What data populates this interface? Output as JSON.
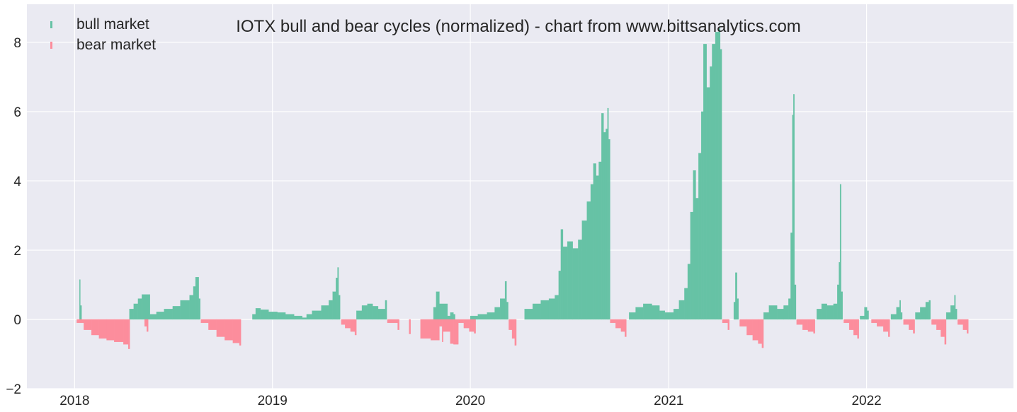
{
  "chart_data": {
    "type": "bar",
    "title": "IOTX bull and bear cycles (normalized)  - chart from www.bittsanalytics.com",
    "xlabel": "",
    "ylabel": "",
    "ylim": [
      -2,
      9.1
    ],
    "xlim": [
      "2017-10-05",
      "2022-09-29"
    ],
    "grid": true,
    "legend_position": "top-left",
    "y_ticks": [
      -2,
      0,
      2,
      4,
      6,
      8
    ],
    "y_tick_labels": [
      "−2",
      "0",
      "2",
      "4",
      "6",
      "8"
    ],
    "x_ticks": [
      "2018-01-01",
      "2019-01-01",
      "2020-01-01",
      "2021-01-01",
      "2022-01-01"
    ],
    "x_tick_labels": [
      "2018",
      "2019",
      "2020",
      "2021",
      "2022"
    ],
    "colors": {
      "bull": "#66c2a5",
      "bear": "#fc8d9c",
      "background": "#eaeaf2",
      "grid": "#ffffff"
    },
    "series": [
      {
        "name": "bull market",
        "points": [
          [
            "2018-01-10",
            1.15
          ],
          [
            "2018-01-11",
            0.4
          ],
          [
            "2018-04-12",
            0.3
          ],
          [
            "2018-04-20",
            0.45
          ],
          [
            "2018-04-28",
            0.6
          ],
          [
            "2018-05-05",
            0.72
          ],
          [
            "2018-05-20",
            0.15
          ],
          [
            "2018-06-01",
            0.22
          ],
          [
            "2018-06-15",
            0.3
          ],
          [
            "2018-07-01",
            0.38
          ],
          [
            "2018-07-15",
            0.55
          ],
          [
            "2018-08-01",
            0.7
          ],
          [
            "2018-08-08",
            0.95
          ],
          [
            "2018-08-12",
            1.22
          ],
          [
            "2018-08-18",
            0.6
          ],
          [
            "2018-11-25",
            0.15
          ],
          [
            "2018-12-01",
            0.32
          ],
          [
            "2018-12-10",
            0.28
          ],
          [
            "2018-12-25",
            0.22
          ],
          [
            "2019-01-10",
            0.2
          ],
          [
            "2019-01-25",
            0.15
          ],
          [
            "2019-02-10",
            0.1
          ],
          [
            "2019-02-25",
            0.05
          ],
          [
            "2019-03-05",
            0.15
          ],
          [
            "2019-03-15",
            0.25
          ],
          [
            "2019-04-01",
            0.4
          ],
          [
            "2019-04-15",
            0.55
          ],
          [
            "2019-04-22",
            0.8
          ],
          [
            "2019-04-28",
            1.2
          ],
          [
            "2019-05-01",
            1.5
          ],
          [
            "2019-05-03",
            0.7
          ],
          [
            "2019-06-05",
            0.25
          ],
          [
            "2019-06-15",
            0.4
          ],
          [
            "2019-06-25",
            0.45
          ],
          [
            "2019-07-05",
            0.38
          ],
          [
            "2019-07-15",
            0.3
          ],
          [
            "2019-07-28",
            0.55
          ],
          [
            "2019-10-25",
            0.35
          ],
          [
            "2019-10-30",
            0.8
          ],
          [
            "2019-11-05",
            0.45
          ],
          [
            "2019-11-20",
            0.1
          ],
          [
            "2019-11-25",
            0.2
          ],
          [
            "2019-12-01",
            0.15
          ],
          [
            "2020-01-01",
            0.1
          ],
          [
            "2020-01-15",
            0.15
          ],
          [
            "2020-02-01",
            0.2
          ],
          [
            "2020-02-15",
            0.35
          ],
          [
            "2020-02-25",
            0.6
          ],
          [
            "2020-03-05",
            1.1
          ],
          [
            "2020-03-08",
            0.5
          ],
          [
            "2020-04-10",
            0.3
          ],
          [
            "2020-04-25",
            0.45
          ],
          [
            "2020-05-10",
            0.55
          ],
          [
            "2020-05-25",
            0.6
          ],
          [
            "2020-06-05",
            0.7
          ],
          [
            "2020-06-12",
            1.4
          ],
          [
            "2020-06-16",
            2.6
          ],
          [
            "2020-06-20",
            2.1
          ],
          [
            "2020-06-28",
            2.25
          ],
          [
            "2020-07-08",
            2.05
          ],
          [
            "2020-07-18",
            2.3
          ],
          [
            "2020-07-25",
            2.85
          ],
          [
            "2020-08-03",
            3.4
          ],
          [
            "2020-08-10",
            3.9
          ],
          [
            "2020-08-15",
            4.5
          ],
          [
            "2020-08-20",
            4.15
          ],
          [
            "2020-08-25",
            4.55
          ],
          [
            "2020-08-30",
            5.95
          ],
          [
            "2020-09-03",
            5.4
          ],
          [
            "2020-09-07",
            5.5
          ],
          [
            "2020-09-10",
            6.1
          ],
          [
            "2020-09-12",
            5.2
          ],
          [
            "2020-10-20",
            0.2
          ],
          [
            "2020-11-01",
            0.35
          ],
          [
            "2020-11-15",
            0.45
          ],
          [
            "2020-12-01",
            0.4
          ],
          [
            "2020-12-15",
            0.25
          ],
          [
            "2020-12-25",
            0.2
          ],
          [
            "2021-01-01",
            0.2
          ],
          [
            "2021-01-10",
            0.3
          ],
          [
            "2021-01-20",
            0.55
          ],
          [
            "2021-01-30",
            0.9
          ],
          [
            "2021-02-05",
            1.6
          ],
          [
            "2021-02-10",
            3.1
          ],
          [
            "2021-02-15",
            4.3
          ],
          [
            "2021-02-20",
            3.5
          ],
          [
            "2021-02-25",
            4.8
          ],
          [
            "2021-03-02",
            6.0
          ],
          [
            "2021-03-06",
            7.95
          ],
          [
            "2021-03-12",
            6.7
          ],
          [
            "2021-03-18",
            7.3
          ],
          [
            "2021-03-22",
            7.95
          ],
          [
            "2021-03-28",
            8.3
          ],
          [
            "2021-04-03",
            8.4
          ],
          [
            "2021-04-06",
            7.8
          ],
          [
            "2021-05-01",
            0.5
          ],
          [
            "2021-05-04",
            1.35
          ],
          [
            "2021-05-07",
            0.6
          ],
          [
            "2021-06-25",
            0.2
          ],
          [
            "2021-07-05",
            0.4
          ],
          [
            "2021-07-20",
            0.3
          ],
          [
            "2021-08-01",
            0.4
          ],
          [
            "2021-08-10",
            0.6
          ],
          [
            "2021-08-14",
            2.5
          ],
          [
            "2021-08-17",
            5.9
          ],
          [
            "2021-08-19",
            6.5
          ],
          [
            "2021-08-21",
            1.0
          ],
          [
            "2021-10-01",
            0.3
          ],
          [
            "2021-10-10",
            0.45
          ],
          [
            "2021-10-20",
            0.4
          ],
          [
            "2021-11-01",
            0.45
          ],
          [
            "2021-11-08",
            1.0
          ],
          [
            "2021-11-11",
            1.65
          ],
          [
            "2021-11-13",
            3.9
          ],
          [
            "2021-11-15",
            0.8
          ],
          [
            "2021-12-20",
            0.1
          ],
          [
            "2021-12-28",
            0.35
          ],
          [
            "2022-01-02",
            0.25
          ],
          [
            "2022-02-15",
            0.15
          ],
          [
            "2022-02-25",
            0.35
          ],
          [
            "2022-03-03",
            0.55
          ],
          [
            "2022-03-05",
            0.2
          ],
          [
            "2022-04-01",
            0.2
          ],
          [
            "2022-04-10",
            0.35
          ],
          [
            "2022-04-20",
            0.5
          ],
          [
            "2022-04-26",
            0.55
          ],
          [
            "2022-05-28",
            0.2
          ],
          [
            "2022-06-05",
            0.4
          ],
          [
            "2022-06-12",
            0.7
          ],
          [
            "2022-06-14",
            0.3
          ]
        ]
      },
      {
        "name": "bear market",
        "points": [
          [
            "2018-01-05",
            -0.1
          ],
          [
            "2018-01-18",
            -0.3
          ],
          [
            "2018-02-01",
            -0.45
          ],
          [
            "2018-02-15",
            -0.55
          ],
          [
            "2018-03-01",
            -0.6
          ],
          [
            "2018-03-15",
            -0.65
          ],
          [
            "2018-04-01",
            -0.72
          ],
          [
            "2018-04-10",
            -0.85
          ],
          [
            "2018-05-10",
            -0.2
          ],
          [
            "2018-05-14",
            -0.35
          ],
          [
            "2018-08-22",
            -0.1
          ],
          [
            "2018-09-05",
            -0.3
          ],
          [
            "2018-09-20",
            -0.5
          ],
          [
            "2018-10-05",
            -0.6
          ],
          [
            "2018-10-20",
            -0.68
          ],
          [
            "2018-11-01",
            -0.75
          ],
          [
            "2019-05-08",
            -0.15
          ],
          [
            "2019-05-15",
            -0.25
          ],
          [
            "2019-05-25",
            -0.35
          ],
          [
            "2019-06-02",
            -0.45
          ],
          [
            "2019-08-01",
            -0.1
          ],
          [
            "2019-08-20",
            -0.3
          ],
          [
            "2019-09-10",
            -0.42
          ],
          [
            "2019-10-01",
            -0.55
          ],
          [
            "2019-10-20",
            -0.6
          ],
          [
            "2019-11-10",
            -0.65
          ],
          [
            "2019-11-25",
            -0.7
          ],
          [
            "2019-12-01",
            -0.72
          ],
          [
            "2019-11-05",
            -0.2
          ],
          [
            "2019-11-12",
            -0.35
          ],
          [
            "2019-12-10",
            -0.1
          ],
          [
            "2019-12-20",
            -0.25
          ],
          [
            "2019-12-30",
            -0.35
          ],
          [
            "2020-01-08",
            -0.4
          ],
          [
            "2020-03-12",
            -0.3
          ],
          [
            "2020-03-18",
            -0.55
          ],
          [
            "2020-03-23",
            -0.75
          ],
          [
            "2020-09-15",
            -0.1
          ],
          [
            "2020-09-25",
            -0.25
          ],
          [
            "2020-10-05",
            -0.35
          ],
          [
            "2020-10-12",
            -0.5
          ],
          [
            "2021-04-10",
            -0.1
          ],
          [
            "2021-04-20",
            -0.3
          ],
          [
            "2021-05-12",
            -0.2
          ],
          [
            "2021-05-25",
            -0.45
          ],
          [
            "2021-06-05",
            -0.6
          ],
          [
            "2021-06-15",
            -0.7
          ],
          [
            "2021-06-22",
            -0.82
          ],
          [
            "2021-08-25",
            -0.15
          ],
          [
            "2021-09-05",
            -0.3
          ],
          [
            "2021-09-15",
            -0.35
          ],
          [
            "2021-09-25",
            -0.4
          ],
          [
            "2021-11-20",
            -0.1
          ],
          [
            "2021-11-30",
            -0.3
          ],
          [
            "2021-12-08",
            -0.45
          ],
          [
            "2021-12-15",
            -0.55
          ],
          [
            "2022-01-10",
            -0.1
          ],
          [
            "2022-01-20",
            -0.2
          ],
          [
            "2022-02-01",
            -0.35
          ],
          [
            "2022-02-10",
            -0.5
          ],
          [
            "2022-03-10",
            -0.15
          ],
          [
            "2022-03-20",
            -0.3
          ],
          [
            "2022-03-28",
            -0.4
          ],
          [
            "2022-05-01",
            -0.15
          ],
          [
            "2022-05-10",
            -0.3
          ],
          [
            "2022-05-18",
            -0.5
          ],
          [
            "2022-05-25",
            -0.72
          ],
          [
            "2022-06-18",
            -0.15
          ],
          [
            "2022-06-28",
            -0.3
          ],
          [
            "2022-07-05",
            -0.4
          ]
        ]
      }
    ]
  }
}
